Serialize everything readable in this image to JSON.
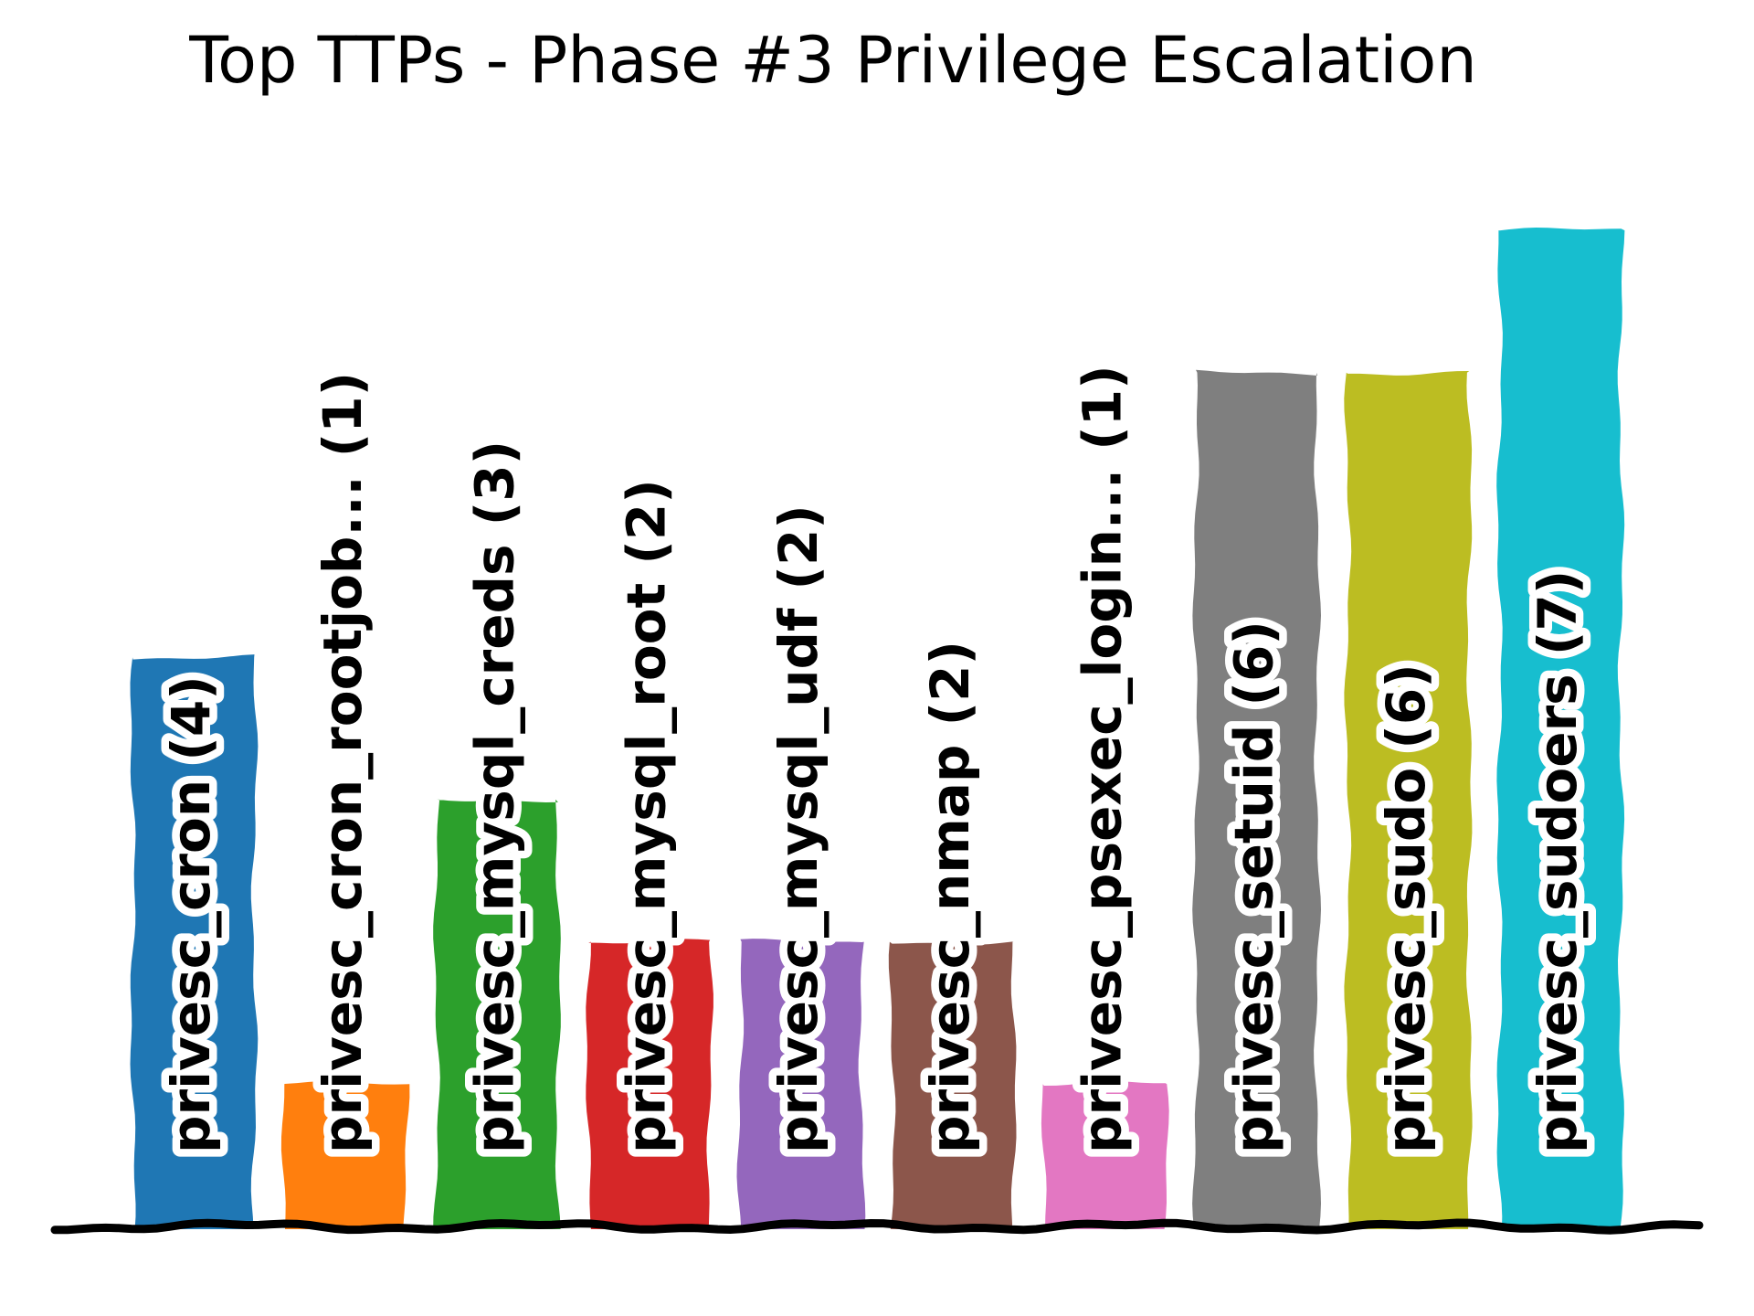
{
  "chart_data": {
    "type": "bar",
    "title": "Top TTPs - Phase #3 Privilege Escalation",
    "categories": [
      "privesc_cron",
      "privesc_cron_rootjob...",
      "privesc_mysql_creds",
      "privesc_mysql_root",
      "privesc_mysql_udf",
      "privesc_nmap",
      "privesc_psexec_login...",
      "privesc_setuid",
      "privesc_sudo",
      "privesc_sudoers"
    ],
    "values": [
      4,
      1,
      3,
      2,
      2,
      2,
      1,
      6,
      6,
      7
    ],
    "bar_labels": [
      "privesc_cron (4)",
      "privesc_cron_rootjob... (1)",
      "privesc_mysql_creds (3)",
      "privesc_mysql_root (2)",
      "privesc_mysql_udf (2)",
      "privesc_nmap (2)",
      "privesc_psexec_login... (1)",
      "privesc_setuid (6)",
      "privesc_sudo (6)",
      "privesc_sudoers (7)"
    ],
    "colors": [
      "#1f77b4",
      "#ff7f0e",
      "#2ca02c",
      "#d62728",
      "#9467bd",
      "#8c564b",
      "#e377c2",
      "#7f7f7f",
      "#bcbd22",
      "#17becf"
    ],
    "label_color": "#000000",
    "label_outline_color": "#ffffff",
    "axis_color": "#000000",
    "background_color": "#ffffff",
    "xlabel": "",
    "ylabel": "",
    "ylim": [
      0,
      7
    ],
    "grid": false,
    "legend": null,
    "style": "xkcd-sketch",
    "bar_label_rotation_deg": 90,
    "bar_label_position": "inside-bottom"
  }
}
